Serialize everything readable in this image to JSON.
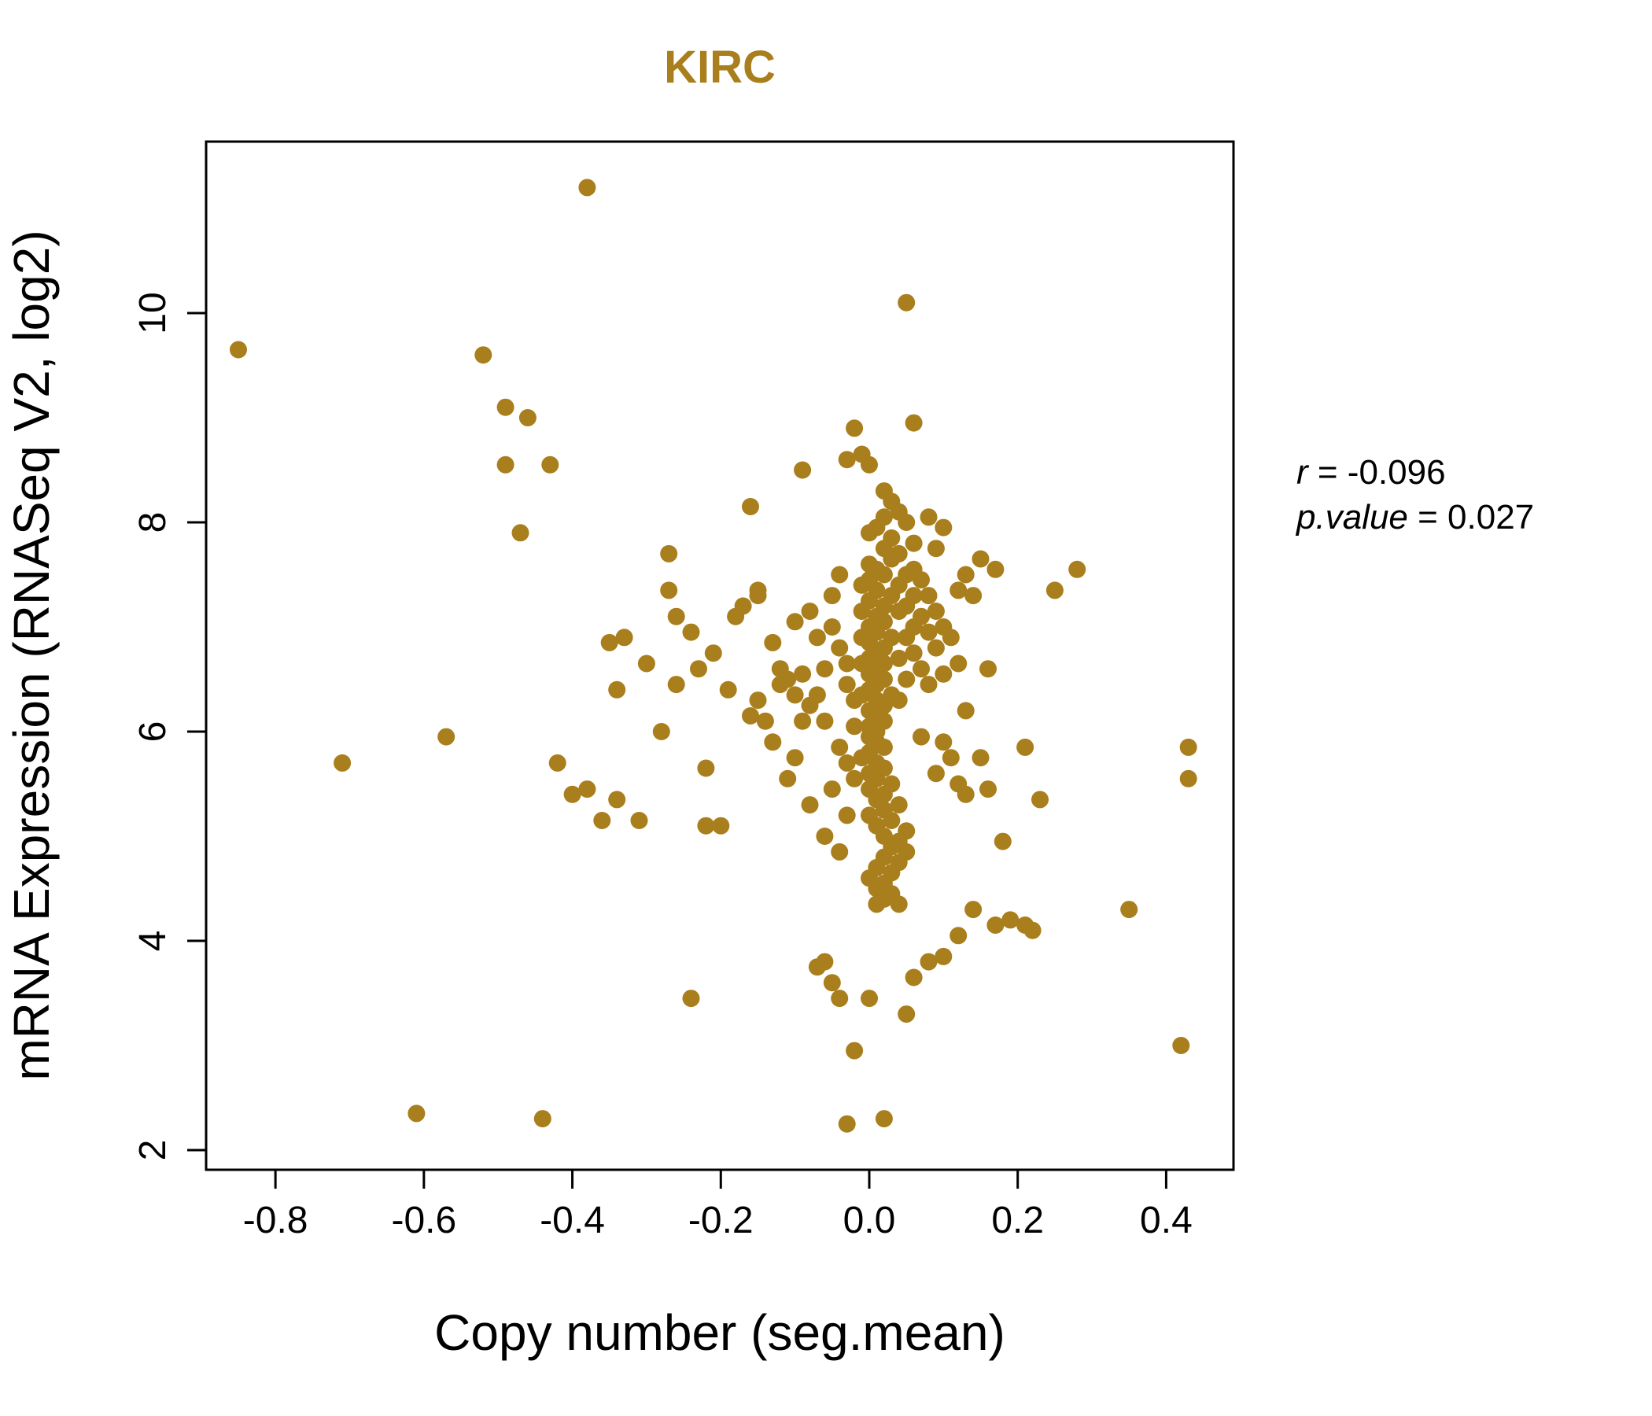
{
  "colors": {
    "accent": "#A97E1C",
    "axis": "#000000",
    "background": "#ffffff"
  },
  "annotation": {
    "r_name": "r",
    "r_rest": " = -0.096",
    "p_name": "p.value",
    "p_rest": " = 0.027"
  },
  "chart_data": {
    "type": "scatter",
    "title": "KIRC",
    "xlabel": "Copy number (seg.mean)",
    "ylabel": "mRNA Expression (RNASeq V2, log2)",
    "xlim": [
      -0.8934,
      0.4907
    ],
    "ylim": [
      1.812,
      11.639
    ],
    "x_ticks": [
      -0.8,
      -0.6,
      -0.4,
      -0.2,
      0.0,
      0.2,
      0.4
    ],
    "x_tick_labels": [
      "-0.8",
      "-0.6",
      "-0.4",
      "-0.2",
      "0.0",
      "0.2",
      "0.4"
    ],
    "y_ticks": [
      2,
      4,
      6,
      8,
      10
    ],
    "y_tick_labels": [
      "2",
      "4",
      "6",
      "8",
      "10"
    ],
    "grid": false,
    "legend": "none",
    "point_color": "#A97E1C",
    "stats": {
      "r": -0.096,
      "p_value": 0.027
    },
    "points": [
      [
        -0.85,
        9.65
      ],
      [
        -0.71,
        5.7
      ],
      [
        -0.61,
        2.35
      ],
      [
        -0.57,
        5.95
      ],
      [
        -0.52,
        9.6
      ],
      [
        -0.49,
        9.1
      ],
      [
        -0.46,
        9.0
      ],
      [
        -0.49,
        8.55
      ],
      [
        -0.43,
        8.55
      ],
      [
        -0.47,
        7.9
      ],
      [
        -0.44,
        2.3
      ],
      [
        -0.42,
        5.7
      ],
      [
        -0.4,
        5.4
      ],
      [
        -0.38,
        11.2
      ],
      [
        -0.38,
        5.45
      ],
      [
        -0.36,
        5.15
      ],
      [
        -0.35,
        6.85
      ],
      [
        -0.34,
        5.35
      ],
      [
        -0.34,
        6.4
      ],
      [
        -0.33,
        6.9
      ],
      [
        -0.31,
        5.15
      ],
      [
        -0.3,
        6.65
      ],
      [
        -0.28,
        6.0
      ],
      [
        -0.27,
        7.7
      ],
      [
        -0.27,
        7.35
      ],
      [
        -0.26,
        7.1
      ],
      [
        -0.26,
        6.45
      ],
      [
        -0.24,
        6.95
      ],
      [
        -0.24,
        3.45
      ],
      [
        -0.23,
        6.6
      ],
      [
        -0.22,
        5.65
      ],
      [
        -0.22,
        5.1
      ],
      [
        -0.21,
        6.75
      ],
      [
        -0.2,
        5.1
      ],
      [
        -0.19,
        6.4
      ],
      [
        -0.18,
        7.1
      ],
      [
        -0.17,
        7.2
      ],
      [
        -0.16,
        8.15
      ],
      [
        -0.16,
        6.15
      ],
      [
        -0.15,
        7.35
      ],
      [
        -0.15,
        7.3
      ],
      [
        -0.15,
        6.3
      ],
      [
        -0.14,
        6.1
      ],
      [
        -0.13,
        6.85
      ],
      [
        -0.13,
        5.9
      ],
      [
        -0.12,
        6.45
      ],
      [
        -0.12,
        6.6
      ],
      [
        -0.11,
        6.5
      ],
      [
        -0.11,
        5.55
      ],
      [
        -0.1,
        7.05
      ],
      [
        -0.1,
        6.35
      ],
      [
        -0.1,
        5.75
      ],
      [
        -0.09,
        8.5
      ],
      [
        -0.09,
        6.55
      ],
      [
        -0.09,
        6.1
      ],
      [
        -0.08,
        6.25
      ],
      [
        -0.08,
        5.3
      ],
      [
        -0.08,
        7.15
      ],
      [
        -0.07,
        6.9
      ],
      [
        -0.07,
        6.35
      ],
      [
        -0.07,
        3.75
      ],
      [
        -0.06,
        6.6
      ],
      [
        -0.06,
        6.1
      ],
      [
        -0.06,
        3.8
      ],
      [
        -0.06,
        5.0
      ],
      [
        -0.05,
        7.3
      ],
      [
        -0.05,
        7.0
      ],
      [
        -0.05,
        5.45
      ],
      [
        -0.05,
        3.6
      ],
      [
        -0.04,
        7.5
      ],
      [
        -0.04,
        6.8
      ],
      [
        -0.04,
        5.85
      ],
      [
        -0.04,
        4.85
      ],
      [
        -0.04,
        3.45
      ],
      [
        -0.03,
        8.6
      ],
      [
        -0.03,
        6.65
      ],
      [
        -0.03,
        6.45
      ],
      [
        -0.03,
        5.7
      ],
      [
        -0.03,
        5.2
      ],
      [
        -0.03,
        2.25
      ],
      [
        -0.02,
        8.9
      ],
      [
        -0.02,
        6.3
      ],
      [
        -0.02,
        6.05
      ],
      [
        -0.02,
        5.55
      ],
      [
        -0.02,
        2.95
      ],
      [
        -0.01,
        8.65
      ],
      [
        -0.01,
        7.4
      ],
      [
        -0.01,
        7.15
      ],
      [
        -0.01,
        6.9
      ],
      [
        -0.01,
        6.65
      ],
      [
        -0.01,
        6.35
      ],
      [
        -0.01,
        5.75
      ],
      [
        0.0,
        8.55
      ],
      [
        0.0,
        7.9
      ],
      [
        0.0,
        7.6
      ],
      [
        0.0,
        7.45
      ],
      [
        0.0,
        7.25
      ],
      [
        0.0,
        7.0
      ],
      [
        0.0,
        6.85
      ],
      [
        0.0,
        6.7
      ],
      [
        0.0,
        6.55
      ],
      [
        0.0,
        6.4
      ],
      [
        0.0,
        6.2
      ],
      [
        0.0,
        6.05
      ],
      [
        0.0,
        5.95
      ],
      [
        0.0,
        5.8
      ],
      [
        0.0,
        5.6
      ],
      [
        0.0,
        5.45
      ],
      [
        0.0,
        5.2
      ],
      [
        0.0,
        4.6
      ],
      [
        0.0,
        3.45
      ],
      [
        0.01,
        7.95
      ],
      [
        0.01,
        7.55
      ],
      [
        0.01,
        7.35
      ],
      [
        0.01,
        7.1
      ],
      [
        0.01,
        6.95
      ],
      [
        0.01,
        6.75
      ],
      [
        0.01,
        6.6
      ],
      [
        0.01,
        6.45
      ],
      [
        0.01,
        6.3
      ],
      [
        0.01,
        6.15
      ],
      [
        0.01,
        6.0
      ],
      [
        0.01,
        5.9
      ],
      [
        0.01,
        5.7
      ],
      [
        0.01,
        5.55
      ],
      [
        0.01,
        5.35
      ],
      [
        0.01,
        5.1
      ],
      [
        0.01,
        4.7
      ],
      [
        0.01,
        4.5
      ],
      [
        0.01,
        4.35
      ],
      [
        0.02,
        8.3
      ],
      [
        0.02,
        8.05
      ],
      [
        0.02,
        7.75
      ],
      [
        0.02,
        7.5
      ],
      [
        0.02,
        7.2
      ],
      [
        0.02,
        7.05
      ],
      [
        0.02,
        6.8
      ],
      [
        0.02,
        6.65
      ],
      [
        0.02,
        6.5
      ],
      [
        0.02,
        6.25
      ],
      [
        0.02,
        6.1
      ],
      [
        0.02,
        5.85
      ],
      [
        0.02,
        5.65
      ],
      [
        0.02,
        5.4
      ],
      [
        0.02,
        5.25
      ],
      [
        0.02,
        5.0
      ],
      [
        0.02,
        4.8
      ],
      [
        0.02,
        4.55
      ],
      [
        0.02,
        4.4
      ],
      [
        0.02,
        2.3
      ],
      [
        0.03,
        8.2
      ],
      [
        0.03,
        7.85
      ],
      [
        0.03,
        7.65
      ],
      [
        0.03,
        7.3
      ],
      [
        0.03,
        6.9
      ],
      [
        0.03,
        6.35
      ],
      [
        0.03,
        5.5
      ],
      [
        0.03,
        5.15
      ],
      [
        0.03,
        4.9
      ],
      [
        0.03,
        4.65
      ],
      [
        0.03,
        4.45
      ],
      [
        0.04,
        8.1
      ],
      [
        0.04,
        7.7
      ],
      [
        0.04,
        7.4
      ],
      [
        0.04,
        7.15
      ],
      [
        0.04,
        6.7
      ],
      [
        0.04,
        6.3
      ],
      [
        0.04,
        5.3
      ],
      [
        0.04,
        4.95
      ],
      [
        0.04,
        4.75
      ],
      [
        0.04,
        4.35
      ],
      [
        0.05,
        10.1
      ],
      [
        0.05,
        8.0
      ],
      [
        0.05,
        7.5
      ],
      [
        0.05,
        7.2
      ],
      [
        0.05,
        6.9
      ],
      [
        0.05,
        6.5
      ],
      [
        0.05,
        5.05
      ],
      [
        0.05,
        4.85
      ],
      [
        0.05,
        3.3
      ],
      [
        0.06,
        8.95
      ],
      [
        0.06,
        7.8
      ],
      [
        0.06,
        7.55
      ],
      [
        0.06,
        7.3
      ],
      [
        0.06,
        7.0
      ],
      [
        0.06,
        6.75
      ],
      [
        0.06,
        3.65
      ],
      [
        0.07,
        7.45
      ],
      [
        0.07,
        7.1
      ],
      [
        0.07,
        6.6
      ],
      [
        0.07,
        5.95
      ],
      [
        0.08,
        8.05
      ],
      [
        0.08,
        7.3
      ],
      [
        0.08,
        6.95
      ],
      [
        0.08,
        6.45
      ],
      [
        0.08,
        3.8
      ],
      [
        0.09,
        7.75
      ],
      [
        0.09,
        7.15
      ],
      [
        0.09,
        6.8
      ],
      [
        0.09,
        5.6
      ],
      [
        0.1,
        7.95
      ],
      [
        0.1,
        7.0
      ],
      [
        0.1,
        6.55
      ],
      [
        0.1,
        5.9
      ],
      [
        0.1,
        3.85
      ],
      [
        0.11,
        6.9
      ],
      [
        0.11,
        5.75
      ],
      [
        0.12,
        7.35
      ],
      [
        0.12,
        6.65
      ],
      [
        0.12,
        5.5
      ],
      [
        0.12,
        4.05
      ],
      [
        0.13,
        7.5
      ],
      [
        0.13,
        6.2
      ],
      [
        0.13,
        5.4
      ],
      [
        0.14,
        7.3
      ],
      [
        0.14,
        4.3
      ],
      [
        0.15,
        7.65
      ],
      [
        0.15,
        5.75
      ],
      [
        0.16,
        6.6
      ],
      [
        0.16,
        5.45
      ],
      [
        0.17,
        7.55
      ],
      [
        0.17,
        4.15
      ],
      [
        0.18,
        4.95
      ],
      [
        0.19,
        4.2
      ],
      [
        0.21,
        5.85
      ],
      [
        0.21,
        4.15
      ],
      [
        0.22,
        4.1
      ],
      [
        0.23,
        5.35
      ],
      [
        0.25,
        7.35
      ],
      [
        0.28,
        7.55
      ],
      [
        0.35,
        4.3
      ],
      [
        0.42,
        3.0
      ],
      [
        0.43,
        5.85
      ],
      [
        0.43,
        5.55
      ]
    ]
  }
}
